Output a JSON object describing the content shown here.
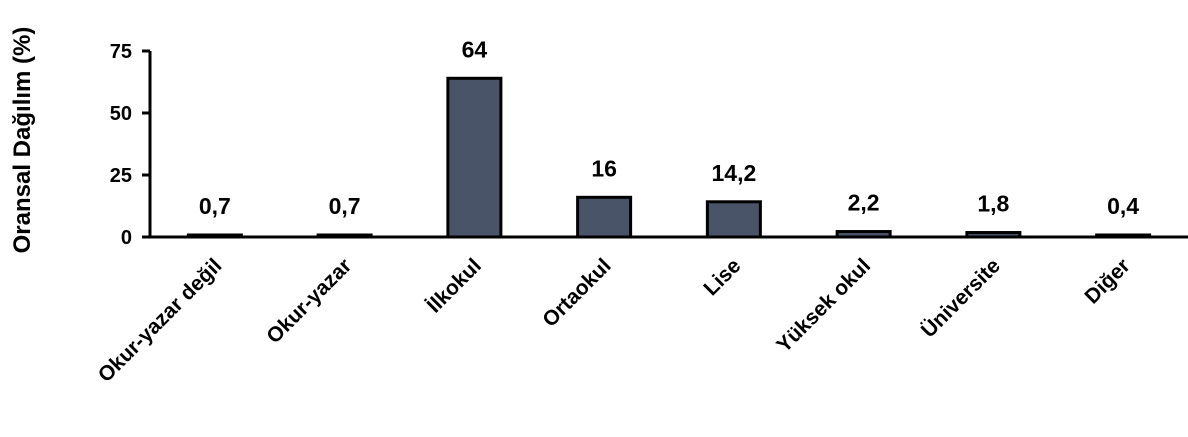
{
  "chart_data": {
    "type": "bar",
    "title": "",
    "xlabel": "",
    "ylabel": "Oransal Dağılım  (%)",
    "ylim": [
      0,
      75
    ],
    "yticks": [
      "0",
      "25",
      "50",
      "75"
    ],
    "categories": [
      "Okur-yazar değil",
      "Okur-yazar",
      "İlkokul",
      "Ortaokul",
      "Lise",
      "Yüksek okul",
      "Üniversite",
      "Diğer"
    ],
    "values": [
      0.7,
      0.7,
      64,
      16,
      14.2,
      2.2,
      1.8,
      0.4
    ],
    "data_labels": [
      "0,7",
      "0,7",
      "64",
      "16",
      "14,2",
      "2,2",
      "1,8",
      "0,4"
    ],
    "bar_color": "#4a5468",
    "grid": false,
    "legend": "none"
  }
}
